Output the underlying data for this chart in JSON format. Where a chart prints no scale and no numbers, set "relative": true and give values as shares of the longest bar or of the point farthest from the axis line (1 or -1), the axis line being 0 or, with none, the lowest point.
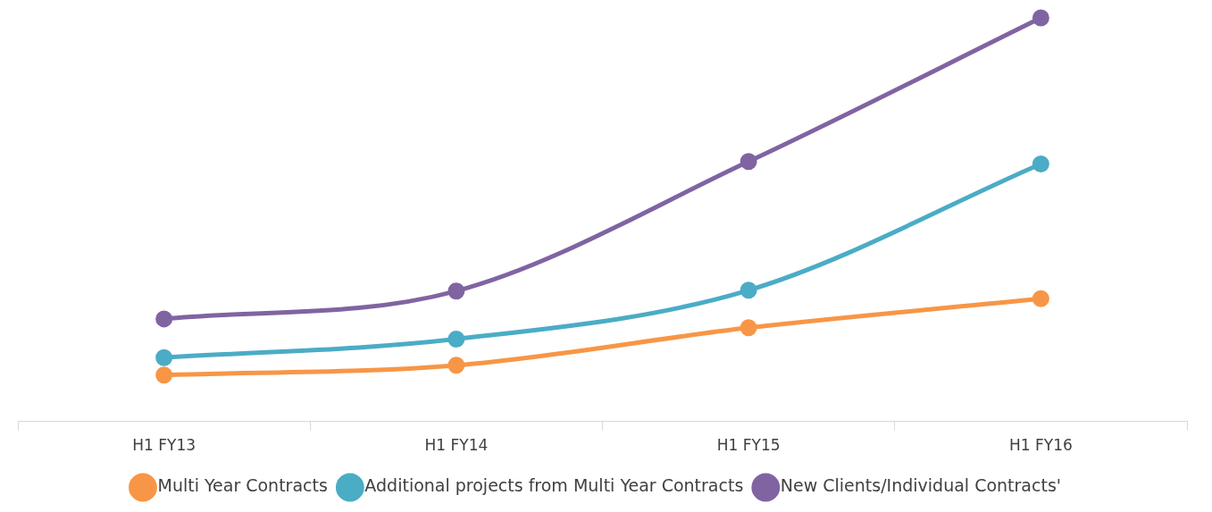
{
  "chart_data": {
    "type": "line",
    "relative": true,
    "categories": [
      "H1 FY13",
      "H1 FY14",
      "H1 FY15",
      "H1 FY16"
    ],
    "series": [
      {
        "name": "Multi Year Contracts",
        "color": "#f79646",
        "values": [
          0.115,
          0.139,
          0.232,
          0.304
        ]
      },
      {
        "name": "Additional projects from Multi Year Contracts",
        "color": "#4bacc6",
        "values": [
          0.158,
          0.204,
          0.325,
          0.638
        ]
      },
      {
        "name": "New Clients/Individual Contracts'",
        "color": "#8064a2",
        "values": [
          0.254,
          0.323,
          0.644,
          1
        ]
      }
    ],
    "legend": "bottom",
    "marker": "circle",
    "line_style": "solid"
  }
}
